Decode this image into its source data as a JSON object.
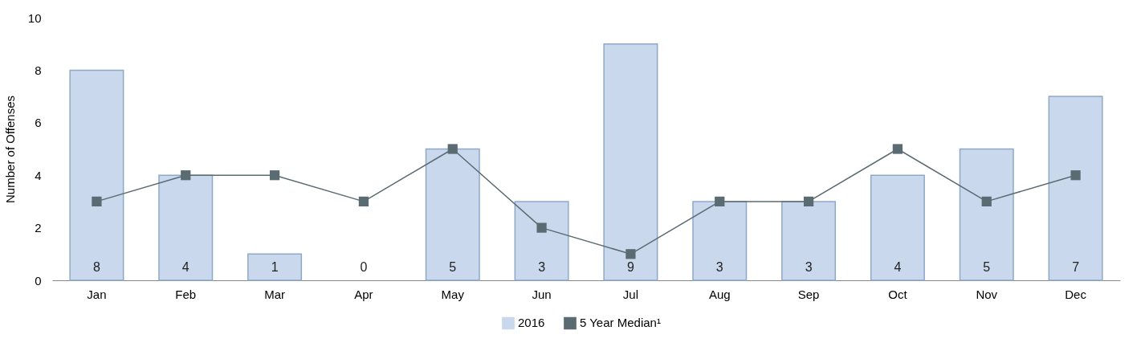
{
  "chart_data": {
    "type": "bar",
    "ylabel": "Number of Offenses",
    "categories": [
      "Jan",
      "Feb",
      "Mar",
      "Apr",
      "May",
      "Jun",
      "Jul",
      "Aug",
      "Sep",
      "Oct",
      "Nov",
      "Dec"
    ],
    "series": [
      {
        "name": "2016",
        "color": "#c9d8ec",
        "values": [
          8,
          4,
          1,
          0,
          5,
          3,
          9,
          3,
          3,
          4,
          5,
          7
        ],
        "value_labels": [
          "8",
          "4",
          "1",
          "0",
          "5",
          "3",
          "9",
          "3",
          "3",
          "4",
          "5",
          "7"
        ]
      },
      {
        "name": "5 Year Median¹",
        "type": "line",
        "color": "#5b6b72",
        "values": [
          3,
          4,
          4,
          3,
          5,
          2,
          1,
          3,
          3,
          5,
          3,
          4
        ]
      }
    ],
    "ylim": [
      0,
      10
    ],
    "yticks": [
      0,
      2,
      4,
      6,
      8,
      10
    ],
    "legend": "bottom",
    "marker": "square",
    "line_style": "solid",
    "grid": false
  }
}
